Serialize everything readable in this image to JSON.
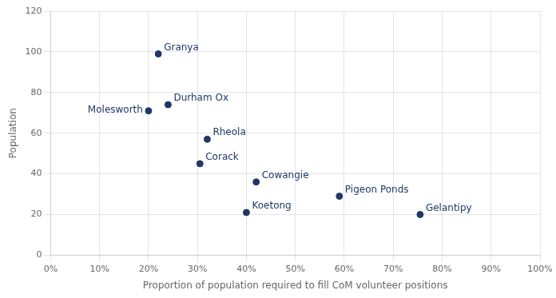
{
  "chart_data": {
    "type": "scatter",
    "xlabel": "Proportion of population required to fill CoM volunteer positions",
    "ylabel": "Population",
    "point_labels": [
      "Granya",
      "Molesworth",
      "Durham Ox",
      "Rheola",
      "Corack",
      "Cowangie",
      "Koetong",
      "Pigeon Ponds",
      "Gelantipy"
    ],
    "x": [
      0.22,
      0.2,
      0.24,
      0.32,
      0.305,
      0.42,
      0.4,
      0.59,
      0.755
    ],
    "values": [
      99,
      71,
      74,
      57,
      45,
      36,
      21,
      29,
      20
    ],
    "color": "#1f3864",
    "xlim": [
      0,
      1.0
    ],
    "ylim": [
      0,
      120
    ],
    "xticks": [
      {
        "value": 0,
        "label": "0%"
      },
      {
        "value": 0.1,
        "label": "10%"
      },
      {
        "value": 0.2,
        "label": "20%"
      },
      {
        "value": 0.3,
        "label": "30%"
      },
      {
        "value": 0.4,
        "label": "40%"
      },
      {
        "value": 0.5,
        "label": "50%"
      },
      {
        "value": 0.6,
        "label": "60%"
      },
      {
        "value": 0.7,
        "label": "70%"
      },
      {
        "value": 0.8,
        "label": "80%"
      },
      {
        "value": 0.9,
        "label": "90%"
      },
      {
        "value": 1.0,
        "label": "100%"
      }
    ],
    "yticks": [
      0,
      20,
      40,
      60,
      80,
      100,
      120
    ],
    "grid": true
  }
}
